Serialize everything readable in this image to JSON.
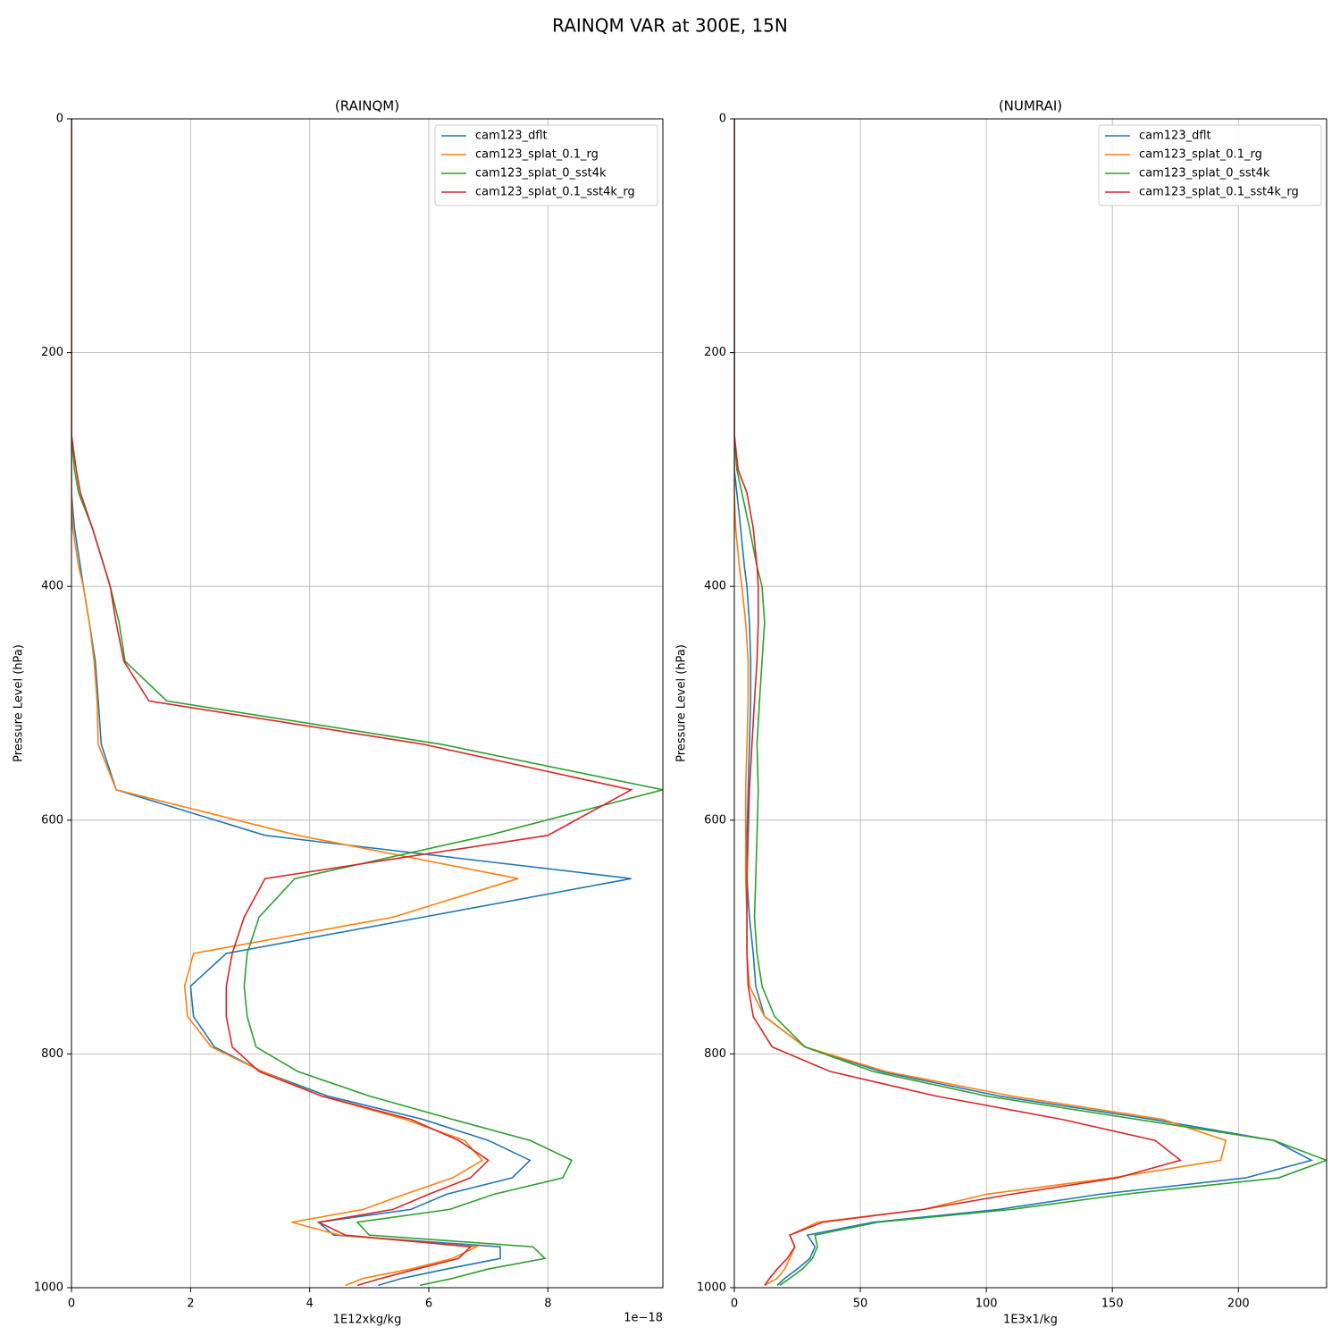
{
  "title": "RAINQM VAR at 300E, 15N",
  "chart_data": [
    {
      "type": "line",
      "title": "(RAINQM)",
      "x_label": "1E12xkg/kg",
      "x_offset_label": "1e−18",
      "y_label": "Pressure Level (hPa)",
      "xlim": [
        0,
        9.93
      ],
      "xticks": [
        0,
        2,
        4,
        6,
        8
      ],
      "ylim": [
        1000,
        0
      ],
      "yticks": [
        0,
        200,
        400,
        600,
        800,
        1000
      ],
      "grid": true,
      "legend": "upper right",
      "y": [
        0,
        200,
        270,
        300,
        320,
        350,
        383,
        400,
        431,
        464,
        498,
        535,
        574,
        613,
        650,
        683,
        714,
        742,
        768,
        794,
        815,
        836,
        856,
        874,
        891,
        906,
        920,
        933,
        944,
        955,
        965,
        975,
        984,
        992,
        998
      ],
      "series": [
        {
          "name": "cam123_dflt",
          "color": "#1f77b4",
          "values": [
            0,
            0,
            0,
            0,
            0,
            0.05,
            0.15,
            0.2,
            0.3,
            0.4,
            0.45,
            0.5,
            0.75,
            3.25,
            9.4,
            5.9,
            2.6,
            2.0,
            2.05,
            2.4,
            3.2,
            4.3,
            5.9,
            7.0,
            7.7,
            7.4,
            6.3,
            5.7,
            4.15,
            4.4,
            7.2,
            7.2,
            6.3,
            5.55,
            5.15
          ]
        },
        {
          "name": "cam123_splat_0.1_rg",
          "color": "#ff7f0e",
          "values": [
            0,
            0,
            0,
            0,
            0,
            0.02,
            0.12,
            0.2,
            0.3,
            0.38,
            0.43,
            0.45,
            0.75,
            3.8,
            7.5,
            5.4,
            2.05,
            1.9,
            1.95,
            2.35,
            3.2,
            4.2,
            5.6,
            6.6,
            6.9,
            6.4,
            5.6,
            4.9,
            3.7,
            4.5,
            6.8,
            6.4,
            5.7,
            4.9,
            4.6
          ]
        },
        {
          "name": "cam123_splat_0_sst4k",
          "color": "#2ca02c",
          "values": [
            0,
            0,
            0,
            0.05,
            0.12,
            0.35,
            0.55,
            0.65,
            0.8,
            0.9,
            1.6,
            6.2,
            9.93,
            7.0,
            3.75,
            3.15,
            2.95,
            2.9,
            2.95,
            3.1,
            3.8,
            5.0,
            6.4,
            7.7,
            8.4,
            8.25,
            7.1,
            6.35,
            4.8,
            5.0,
            7.75,
            7.95,
            7.0,
            6.4,
            5.85
          ]
        },
        {
          "name": "cam123_splat_0.1_sst4k_rg",
          "color": "#d62728",
          "values": [
            0,
            0,
            0,
            0.08,
            0.15,
            0.35,
            0.55,
            0.65,
            0.75,
            0.88,
            1.3,
            5.9,
            9.4,
            8.0,
            3.25,
            2.9,
            2.7,
            2.6,
            2.6,
            2.7,
            3.15,
            4.2,
            5.7,
            6.5,
            7.0,
            6.7,
            6.0,
            5.4,
            4.15,
            4.6,
            6.7,
            6.5,
            5.8,
            5.2,
            4.8
          ]
        }
      ]
    },
    {
      "type": "line",
      "title": "(NUMRAI)",
      "x_label": "1E3x1/kg",
      "y_label": "Pressure Level (hPa)",
      "xlim": [
        0,
        235
      ],
      "xticks": [
        0,
        50,
        100,
        150,
        200
      ],
      "ylim": [
        1000,
        0
      ],
      "yticks": [
        0,
        200,
        400,
        600,
        800,
        1000
      ],
      "grid": true,
      "legend": "upper right",
      "y": [
        0,
        200,
        270,
        300,
        320,
        350,
        383,
        400,
        431,
        464,
        498,
        535,
        574,
        613,
        650,
        683,
        714,
        742,
        768,
        794,
        815,
        836,
        856,
        874,
        891,
        906,
        920,
        933,
        944,
        955,
        965,
        975,
        984,
        992,
        998
      ],
      "series": [
        {
          "name": "cam123_dflt",
          "color": "#1f77b4",
          "values": [
            0,
            0,
            0,
            0,
            1,
            2.5,
            4,
            5,
            6,
            6.5,
            6.5,
            6,
            5.5,
            5,
            5,
            6,
            7.5,
            8.5,
            12,
            28,
            58,
            105,
            166,
            214,
            229,
            203,
            145,
            105,
            55,
            29,
            32,
            30,
            25,
            20,
            17
          ]
        },
        {
          "name": "cam123_splat_0.1_rg",
          "color": "#ff7f0e",
          "values": [
            0,
            0,
            0,
            0,
            0,
            0.5,
            2,
            3,
            4.5,
            5.5,
            5.5,
            5,
            4.5,
            4.5,
            4.5,
            5,
            5,
            6,
            12,
            28,
            60,
            110,
            170,
            195,
            193,
            150,
            100,
            75,
            33,
            22,
            24,
            22,
            20,
            17,
            12
          ]
        },
        {
          "name": "cam123_splat_0_sst4k",
          "color": "#2ca02c",
          "values": [
            0,
            0,
            0,
            1,
            3,
            6,
            9,
            11,
            12,
            11,
            10,
            9,
            9.5,
            9,
            8.5,
            8,
            9,
            11,
            16,
            28,
            55,
            100,
            160,
            214,
            235,
            216,
            155,
            110,
            57,
            32,
            33,
            31,
            27,
            22,
            18
          ]
        },
        {
          "name": "cam123_splat_0.1_sst4k_rg",
          "color": "#d62728",
          "values": [
            0,
            0,
            0,
            1.5,
            5,
            7.5,
            9,
            9.5,
            9.5,
            9,
            8,
            7,
            6,
            5.5,
            5,
            5,
            5,
            5.5,
            7.5,
            15,
            38,
            80,
            130,
            167,
            177,
            152,
            110,
            75,
            35,
            22,
            24,
            21,
            17,
            14,
            12
          ]
        }
      ]
    }
  ]
}
